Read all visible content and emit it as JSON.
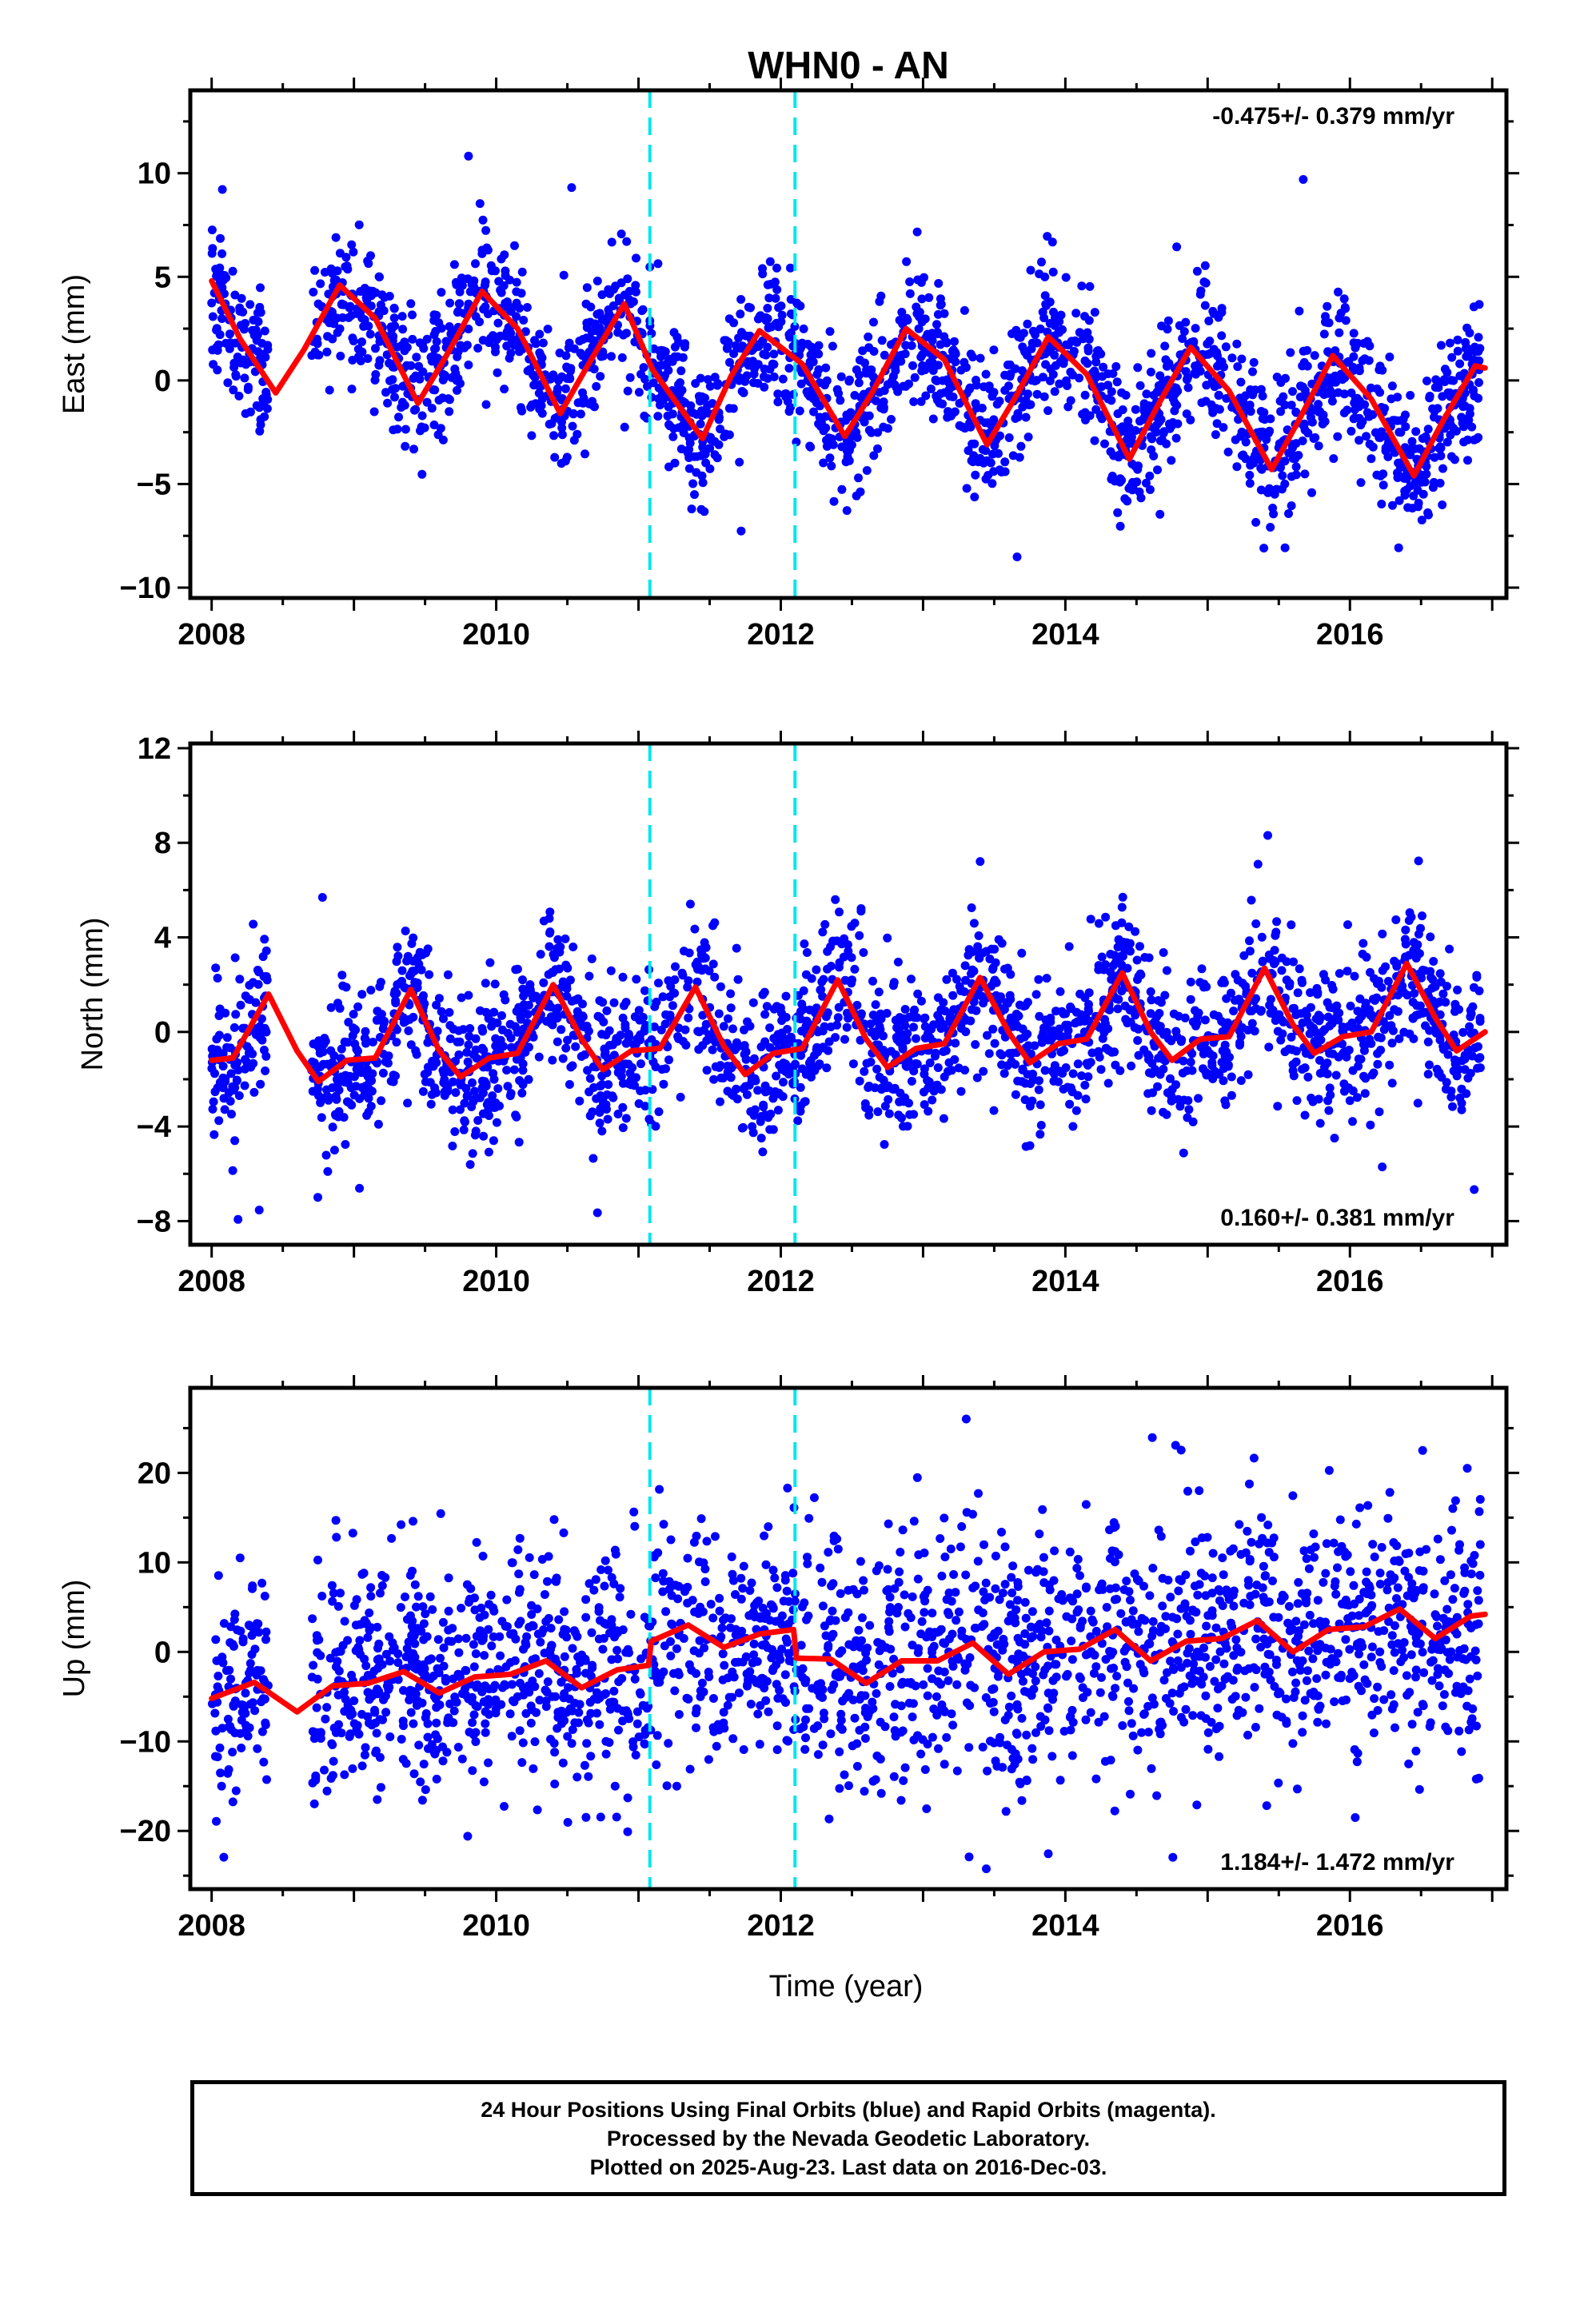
{
  "title": "WHN0 - AN",
  "xlabel": "Time (year)",
  "caption": {
    "line1": "24 Hour Positions Using Final Orbits (blue) and Rapid Orbits (magenta).",
    "line2": "Processed by the Nevada Geodetic Laboratory.",
    "line3": "Plotted on 2025-Aug-23. Last data on 2016-Dec-03."
  },
  "colors": {
    "points": "#0000ff",
    "model": "#ff0000",
    "breaks": "#00e5ee",
    "frame": "#000000"
  },
  "chart_data": [
    {
      "type": "scatter",
      "panel": "east",
      "ylabel": "East (mm)",
      "rate": "-0.475+/- 0.379 mm/yr",
      "rate_position": "top-right",
      "xlim": [
        2007.85,
        2017.1
      ],
      "ylim": [
        -10.5,
        14
      ],
      "xticks": [
        2008,
        2010,
        2012,
        2014,
        2016
      ],
      "xtick_labels": [
        "2008",
        "2010",
        "2012",
        "2014",
        "2016"
      ],
      "yticks": [
        -10,
        -5,
        0,
        5,
        10
      ],
      "ytick_labels": [
        "−10",
        "−5",
        "0",
        "5",
        "10"
      ],
      "breaks": [
        2011.08,
        2012.1
      ],
      "model": {
        "x": [
          2008.0,
          2008.2,
          2008.45,
          2008.65,
          2008.9,
          2009.15,
          2009.45,
          2009.65,
          2009.9,
          2010.15,
          2010.45,
          2010.65,
          2010.9,
          2011.1,
          2011.45,
          2011.65,
          2011.85,
          2012.15,
          2012.45,
          2012.65,
          2012.88,
          2013.15,
          2013.45,
          2013.65,
          2013.88,
          2014.15,
          2014.45,
          2014.65,
          2014.88,
          2015.15,
          2015.45,
          2015.65,
          2015.88,
          2016.15,
          2016.45,
          2016.65,
          2016.88,
          2016.95
        ],
        "y": [
          4.8,
          2.0,
          -0.6,
          1.5,
          4.6,
          3.0,
          -1.1,
          1.2,
          4.3,
          2.5,
          -1.6,
          0.8,
          3.7,
          0.5,
          -2.8,
          0.2,
          2.4,
          0.8,
          -2.7,
          -0.5,
          2.5,
          1.0,
          -3.1,
          -0.8,
          2.1,
          0.3,
          -3.8,
          -1.2,
          1.6,
          -0.5,
          -4.3,
          -1.8,
          1.2,
          -0.9,
          -4.6,
          -2.0,
          0.7,
          0.6
        ]
      },
      "scatter": {
        "seed": 11,
        "count": 2200,
        "noise_sd": 1.7,
        "outlier_frac": 0.02,
        "outlier_sd": 4.5,
        "xmin": 2008.0,
        "xmax": 2016.92,
        "gaps": [
          [
            2008.4,
            2008.7
          ]
        ]
      }
    },
    {
      "type": "scatter",
      "panel": "north",
      "ylabel": "North (mm)",
      "rate": "0.160+/- 0.381 mm/yr",
      "rate_position": "bottom-right",
      "xlim": [
        2007.85,
        2017.1
      ],
      "ylim": [
        -9,
        12.2
      ],
      "xticks": [
        2008,
        2010,
        2012,
        2014,
        2016
      ],
      "xtick_labels": [
        "2008",
        "2010",
        "2012",
        "2014",
        "2016"
      ],
      "yticks": [
        -8,
        -4,
        0,
        4,
        8,
        12
      ],
      "ytick_labels": [
        "−8",
        "−4",
        "0",
        "4",
        "8",
        "12"
      ],
      "breaks": [
        2011.08,
        2012.1
      ],
      "model": {
        "x": [
          2008.0,
          2008.15,
          2008.4,
          2008.6,
          2008.75,
          2008.95,
          2009.15,
          2009.4,
          2009.6,
          2009.75,
          2009.95,
          2010.15,
          2010.4,
          2010.6,
          2010.75,
          2010.95,
          2011.15,
          2011.4,
          2011.6,
          2011.75,
          2011.95,
          2012.15,
          2012.4,
          2012.6,
          2012.75,
          2012.95,
          2013.15,
          2013.4,
          2013.6,
          2013.75,
          2013.95,
          2014.15,
          2014.4,
          2014.6,
          2014.75,
          2014.95,
          2015.15,
          2015.4,
          2015.6,
          2015.75,
          2015.95,
          2016.15,
          2016.4,
          2016.6,
          2016.75,
          2016.95
        ],
        "y": [
          -1.2,
          -1.1,
          1.6,
          -0.8,
          -2.1,
          -1.2,
          -1.1,
          1.8,
          -0.8,
          -1.9,
          -1.1,
          -0.9,
          2.0,
          -0.3,
          -1.6,
          -0.8,
          -0.7,
          1.9,
          -0.6,
          -1.8,
          -0.9,
          -0.7,
          2.2,
          -0.3,
          -1.5,
          -0.7,
          -0.5,
          2.3,
          0.0,
          -1.3,
          -0.5,
          -0.3,
          2.5,
          0.0,
          -1.2,
          -0.3,
          -0.2,
          2.7,
          0.3,
          -0.9,
          -0.2,
          0.0,
          2.9,
          0.6,
          -0.8,
          0.0
        ]
      },
      "scatter": {
        "seed": 23,
        "count": 2200,
        "noise_sd": 1.6,
        "outlier_frac": 0.02,
        "outlier_sd": 4.0,
        "xmin": 2008.0,
        "xmax": 2016.92,
        "gaps": [
          [
            2008.4,
            2008.7
          ]
        ]
      }
    },
    {
      "type": "scatter",
      "panel": "up",
      "ylabel": "Up (mm)",
      "rate": "1.184+/- 1.472 mm/yr",
      "rate_position": "bottom-right",
      "xlim": [
        2007.85,
        2017.1
      ],
      "ylim": [
        -26.5,
        29.5
      ],
      "xticks": [
        2008,
        2010,
        2012,
        2014,
        2016
      ],
      "xtick_labels": [
        "2008",
        "2010",
        "2012",
        "2014",
        "2016"
      ],
      "yticks": [
        -20,
        -10,
        0,
        10,
        20
      ],
      "ytick_labels": [
        "−20",
        "−10",
        "0",
        "10",
        "20"
      ],
      "breaks": [
        2011.08,
        2012.1
      ],
      "model": {
        "x": [
          2008.0,
          2008.3,
          2008.6,
          2008.85,
          2009.1,
          2009.35,
          2009.6,
          2009.85,
          2010.1,
          2010.35,
          2010.6,
          2010.85,
          2011.07,
          2011.09,
          2011.35,
          2011.6,
          2011.85,
          2012.09,
          2012.11,
          2012.35,
          2012.6,
          2012.85,
          2013.1,
          2013.35,
          2013.6,
          2013.85,
          2014.1,
          2014.35,
          2014.6,
          2014.85,
          2015.1,
          2015.35,
          2015.6,
          2015.85,
          2016.1,
          2016.35,
          2016.6,
          2016.85,
          2016.95
        ],
        "y": [
          -5.2,
          -3.4,
          -6.7,
          -3.8,
          -3.5,
          -2.2,
          -4.6,
          -2.8,
          -2.5,
          -1.0,
          -4.0,
          -2.0,
          -1.5,
          1.2,
          3.0,
          0.5,
          2.0,
          2.5,
          -0.7,
          -0.8,
          -3.5,
          -1.0,
          -1.0,
          1.0,
          -2.5,
          0.0,
          0.3,
          2.5,
          -1.0,
          1.2,
          1.5,
          3.5,
          0.0,
          2.5,
          2.8,
          4.8,
          1.5,
          4.0,
          4.2
        ]
      },
      "scatter": {
        "seed": 37,
        "count": 2200,
        "noise_sd": 6.5,
        "outlier_frac": 0.02,
        "outlier_sd": 14.0,
        "xmin": 2008.0,
        "xmax": 2016.92,
        "gaps": [
          [
            2008.4,
            2008.7
          ]
        ]
      }
    }
  ]
}
